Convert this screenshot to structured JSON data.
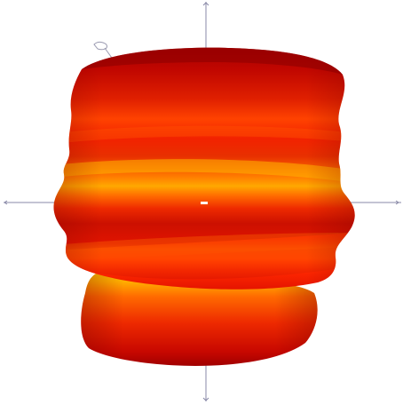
{
  "scene": {
    "background": "#ffffff",
    "axis_color": "#8a8aa8",
    "palette": {
      "dark_red": "#a80000",
      "red": "#e01000",
      "red_orange": "#ff3a00",
      "orange": "#ff7a00",
      "yellow_orange": "#ffb000",
      "yellow": "#ffd000"
    },
    "objects": [
      "3d-surface-rendering",
      "coordinate-axes",
      "origin-marker"
    ]
  }
}
